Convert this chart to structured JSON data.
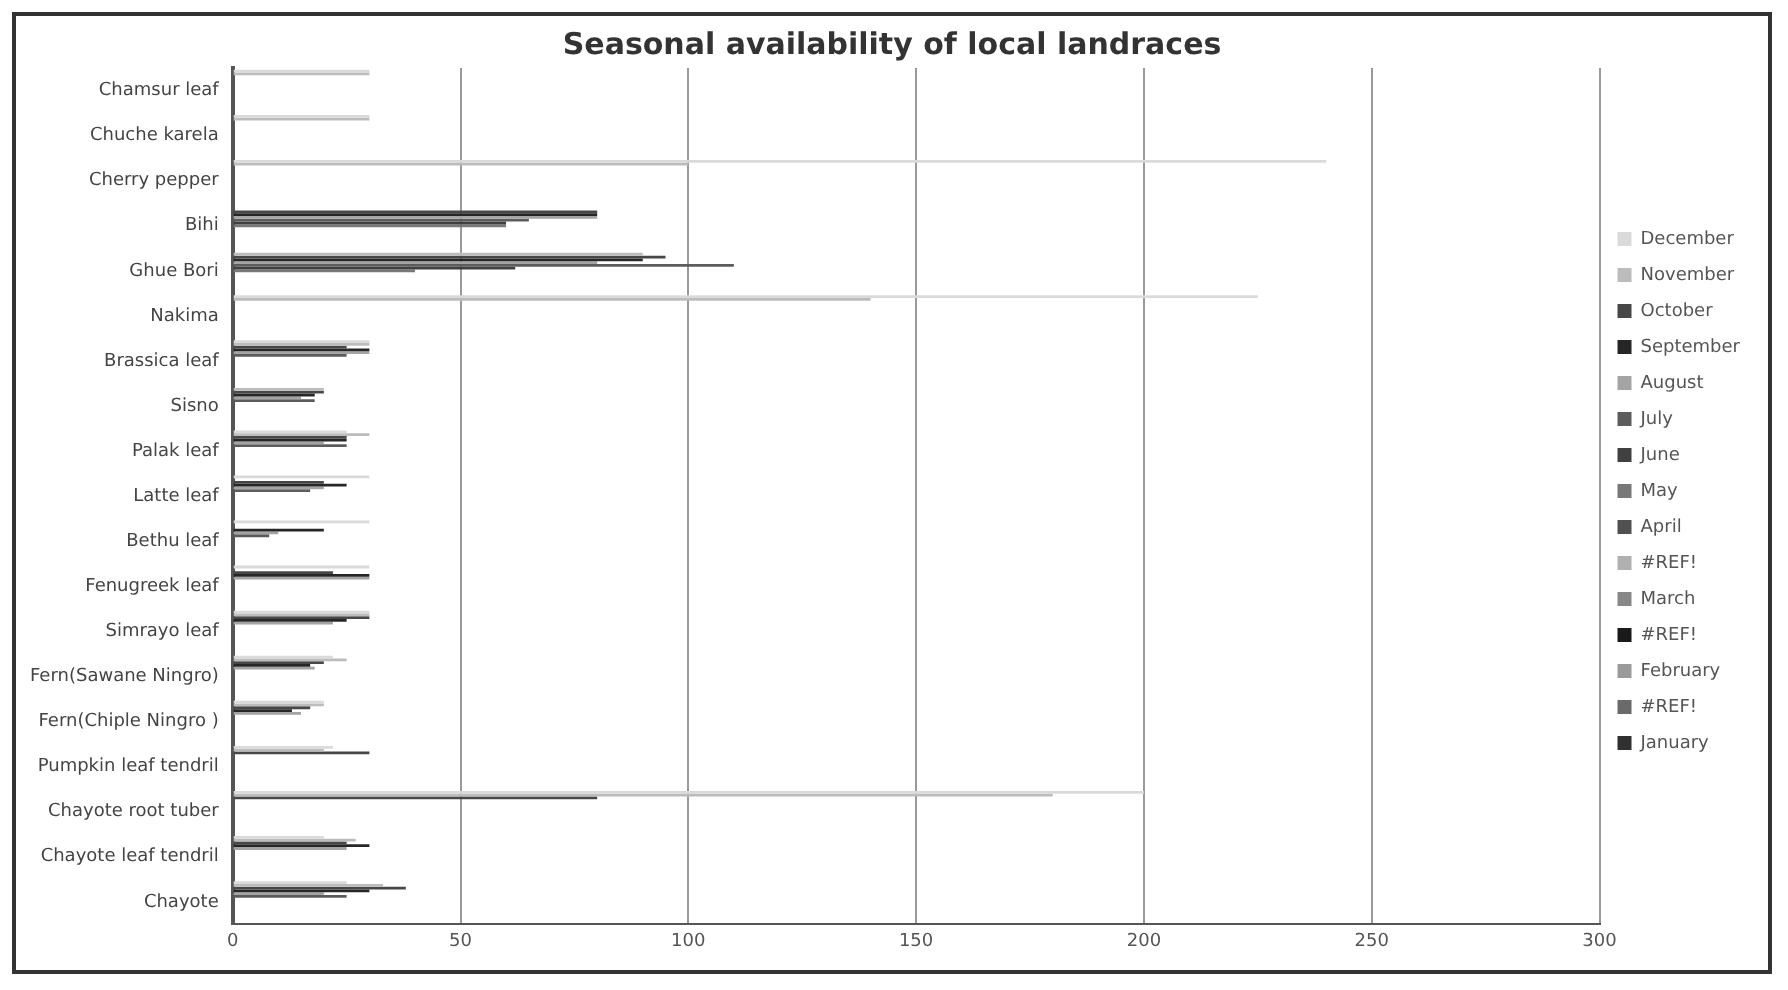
{
  "chart_data": {
    "type": "bar",
    "orientation": "horizontal",
    "title": "Seasonal availability of local landraces",
    "categories": [
      "Chamsur leaf",
      "Chuche karela",
      "Cherry pepper",
      "Bihi",
      "Ghue Bori",
      "Nakima",
      "Brassica leaf",
      "Sisno",
      "Palak leaf",
      "Latte leaf",
      "Bethu leaf",
      "Fenugreek leaf",
      "Simrayo leaf",
      "Fern(Sawane Ningro)",
      "Fern(Chiple Ningro )",
      "Pumpkin leaf tendril",
      "Chayote root tuber",
      "Chayote leaf tendril",
      "Chayote"
    ],
    "series": [
      {
        "name": "January",
        "color": "#303030",
        "values": [
          0,
          0,
          0,
          0,
          0,
          0,
          0,
          0,
          0,
          0,
          0,
          0,
          0,
          0,
          0,
          0,
          0,
          0,
          0
        ]
      },
      {
        "name": "#REF!",
        "color": "#6a6a6a",
        "values": [
          0,
          0,
          0,
          0,
          0,
          0,
          0,
          0,
          0,
          0,
          0,
          0,
          0,
          0,
          0,
          0,
          0,
          0,
          0
        ]
      },
      {
        "name": "February",
        "color": "#9a9a9a",
        "values": [
          0,
          0,
          0,
          0,
          0,
          0,
          0,
          0,
          0,
          0,
          0,
          0,
          0,
          0,
          0,
          0,
          0,
          0,
          0
        ]
      },
      {
        "name": "#REF!",
        "color": "#1a1a1a",
        "values": [
          0,
          0,
          0,
          0,
          0,
          0,
          0,
          0,
          0,
          0,
          0,
          0,
          0,
          0,
          0,
          0,
          0,
          0,
          0
        ]
      },
      {
        "name": "March",
        "color": "#888888",
        "values": [
          0,
          0,
          0,
          0,
          0,
          0,
          0,
          0,
          0,
          0,
          0,
          0,
          0,
          0,
          0,
          0,
          0,
          0,
          0
        ]
      },
      {
        "name": "#REF!",
        "color": "#b0b0b0",
        "values": [
          0,
          0,
          0,
          0,
          0,
          0,
          0,
          0,
          0,
          0,
          0,
          0,
          0,
          0,
          0,
          0,
          0,
          0,
          0
        ]
      },
      {
        "name": "April",
        "color": "#505050",
        "values": [
          0,
          0,
          0,
          0,
          0,
          0,
          0,
          0,
          0,
          0,
          0,
          0,
          0,
          0,
          0,
          0,
          0,
          0,
          0
        ]
      },
      {
        "name": "May",
        "color": "#787878",
        "values": [
          0,
          0,
          0,
          60,
          40,
          0,
          0,
          0,
          0,
          0,
          0,
          0,
          0,
          0,
          0,
          0,
          0,
          0,
          0
        ]
      },
      {
        "name": "June",
        "color": "#404040",
        "values": [
          0,
          0,
          0,
          60,
          62,
          0,
          0,
          0,
          0,
          0,
          0,
          0,
          0,
          0,
          0,
          0,
          0,
          0,
          0
        ]
      },
      {
        "name": "July",
        "color": "#5c5c5c",
        "values": [
          0,
          0,
          0,
          65,
          110,
          0,
          25,
          18,
          25,
          17,
          8,
          0,
          0,
          0,
          0,
          0,
          0,
          0,
          25
        ]
      },
      {
        "name": "August",
        "color": "#a4a4a4",
        "values": [
          0,
          0,
          0,
          80,
          80,
          0,
          30,
          15,
          20,
          20,
          10,
          30,
          22,
          18,
          15,
          0,
          0,
          25,
          20
        ]
      },
      {
        "name": "September",
        "color": "#262626",
        "values": [
          0,
          0,
          0,
          80,
          90,
          0,
          30,
          18,
          25,
          25,
          20,
          30,
          25,
          17,
          13,
          0,
          0,
          30,
          30
        ]
      },
      {
        "name": "October",
        "color": "#474747",
        "values": [
          0,
          0,
          0,
          80,
          95,
          0,
          25,
          20,
          25,
          20,
          0,
          22,
          30,
          20,
          17,
          30,
          80,
          25,
          38
        ]
      },
      {
        "name": "November",
        "color": "#bcbcbc",
        "values": [
          30,
          30,
          100,
          0,
          90,
          140,
          30,
          20,
          30,
          0,
          0,
          0,
          30,
          25,
          20,
          20,
          180,
          27,
          33
        ]
      },
      {
        "name": "December",
        "color": "#dadada",
        "values": [
          30,
          30,
          240,
          0,
          0,
          225,
          30,
          0,
          25,
          30,
          30,
          30,
          30,
          22,
          20,
          22,
          200,
          20,
          25
        ]
      }
    ],
    "xlim": [
      0,
      300
    ],
    "xticks": [
      0,
      50,
      100,
      150,
      200,
      250,
      300
    ],
    "grid": "x",
    "legend": "right"
  }
}
